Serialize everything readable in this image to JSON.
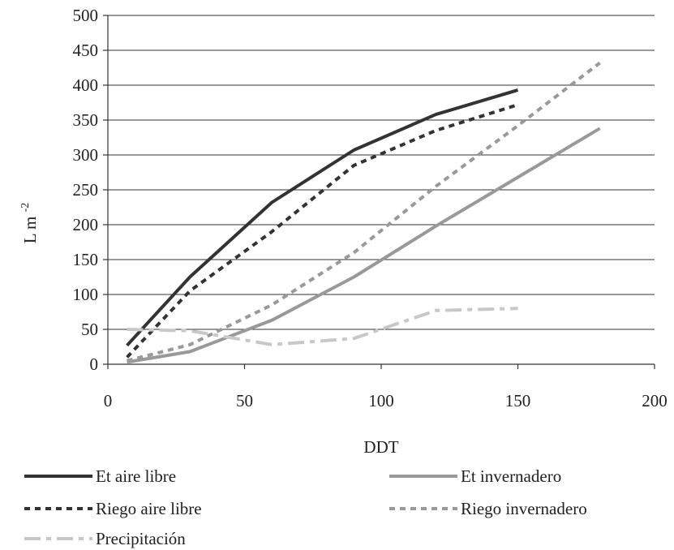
{
  "chart_data": {
    "type": "line",
    "title": "",
    "xlabel": "DDT",
    "ylabel": "L m",
    "ylabel_superscript": "-2",
    "xlim": [
      0,
      200
    ],
    "ylim": [
      0,
      500
    ],
    "xticks": [
      0,
      50,
      100,
      150,
      200
    ],
    "yticks": [
      0,
      50,
      100,
      150,
      200,
      250,
      300,
      350,
      400,
      450,
      500
    ],
    "grid": "horizontal",
    "legend_position": "bottom",
    "series": [
      {
        "name": "Et aire libre",
        "color": "#333333",
        "dash": "solid",
        "points": [
          [
            7,
            27
          ],
          [
            30,
            125
          ],
          [
            60,
            232
          ],
          [
            90,
            307
          ],
          [
            120,
            358
          ],
          [
            150,
            393
          ]
        ]
      },
      {
        "name": "Et invernadero",
        "color": "#999999",
        "dash": "solid",
        "points": [
          [
            7,
            3
          ],
          [
            30,
            18
          ],
          [
            60,
            63
          ],
          [
            90,
            125
          ],
          [
            120,
            198
          ],
          [
            150,
            268
          ],
          [
            180,
            338
          ]
        ]
      },
      {
        "name": "Riego aire libre",
        "color": "#333333",
        "dash": "dotted",
        "points": [
          [
            7,
            10
          ],
          [
            30,
            105
          ],
          [
            60,
            190
          ],
          [
            90,
            285
          ],
          [
            120,
            335
          ],
          [
            150,
            372
          ]
        ]
      },
      {
        "name": "Riego invernadero",
        "color": "#999999",
        "dash": "dotted",
        "points": [
          [
            7,
            5
          ],
          [
            30,
            28
          ],
          [
            60,
            85
          ],
          [
            90,
            160
          ],
          [
            120,
            255
          ],
          [
            150,
            342
          ],
          [
            180,
            432
          ]
        ]
      },
      {
        "name": "Precipitación",
        "color": "#c8c8c8",
        "dash": "dashdot",
        "points": [
          [
            7,
            50
          ],
          [
            30,
            48
          ],
          [
            60,
            28
          ],
          [
            90,
            37
          ],
          [
            120,
            77
          ],
          [
            150,
            80
          ]
        ]
      }
    ]
  }
}
